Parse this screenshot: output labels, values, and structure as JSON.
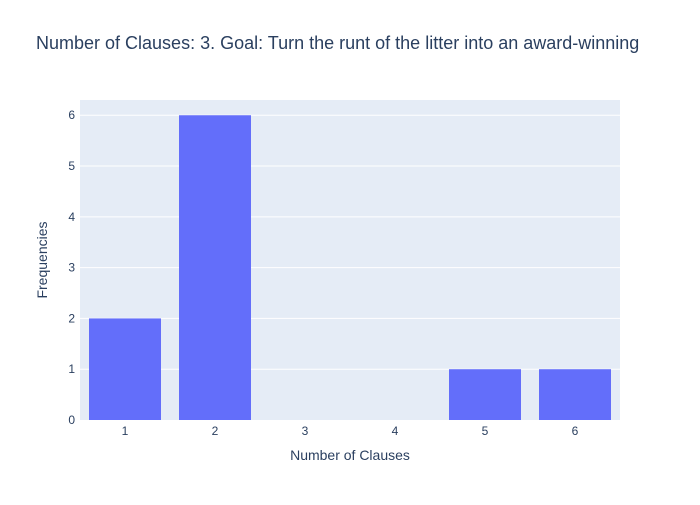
{
  "chart_data": {
    "type": "bar",
    "title": "Number of Clauses: 3. Goal: Turn the runt of the litter into an award-winning",
    "xlabel": "Number of Clauses",
    "ylabel": "Frequencies",
    "categories": [
      "1",
      "2",
      "3",
      "4",
      "5",
      "6"
    ],
    "values": [
      2,
      6,
      0,
      0,
      1,
      1
    ],
    "ylim": [
      0,
      6.3
    ],
    "yticks": [
      "0",
      "1",
      "2",
      "3",
      "4",
      "5",
      "6"
    ],
    "grid": true,
    "colors": {
      "bar": "#636efa",
      "plot_bg": "#e5ecf6",
      "grid": "#ffffff",
      "text": "#2a3f5f"
    }
  }
}
